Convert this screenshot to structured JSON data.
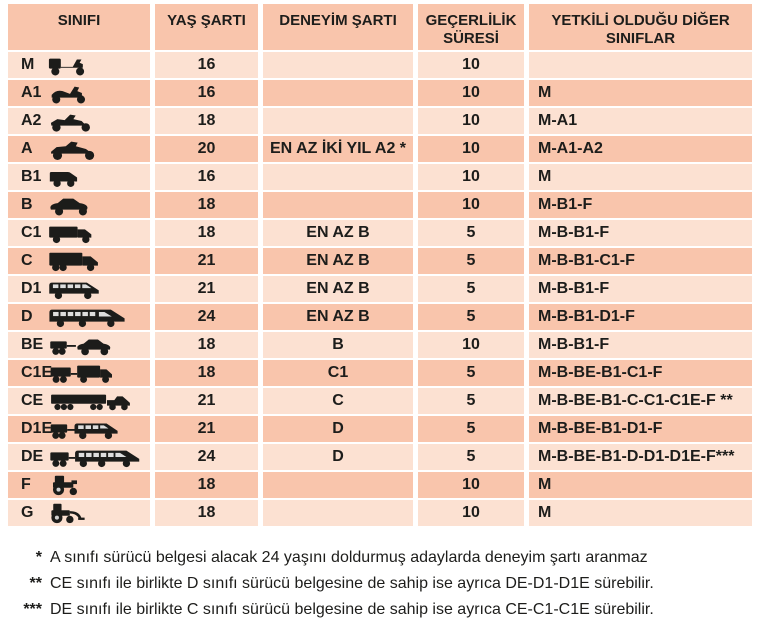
{
  "colors": {
    "row_light": "#fce1d2",
    "row_dark": "#f9c5ac",
    "text": "#1d1d1b",
    "background": "#ffffff"
  },
  "table": {
    "headers": [
      "SINIFI",
      "YAŞ ŞARTI",
      "DENEYİM ŞARTI",
      "GEÇERLİLİK SÜRESİ",
      "YETKİLİ OLDUĞU DİĞER SINIFLAR"
    ],
    "rows": [
      {
        "class": "M",
        "icon": "moped-icon",
        "age": "16",
        "experience": "",
        "validity": "10",
        "authorized": ""
      },
      {
        "class": "A1",
        "icon": "scooter-icon",
        "age": "16",
        "experience": "",
        "validity": "10",
        "authorized": "M"
      },
      {
        "class": "A2",
        "icon": "motorcycle-icon",
        "age": "18",
        "experience": "",
        "validity": "10",
        "authorized": "M-A1"
      },
      {
        "class": "A",
        "icon": "heavy-motorcycle-icon",
        "age": "20",
        "experience": "EN AZ İKİ YIL A2 *",
        "validity": "10",
        "authorized": "M-A1-A2"
      },
      {
        "class": "B1",
        "icon": "van-icon",
        "age": "16",
        "experience": "",
        "validity": "10",
        "authorized": "M"
      },
      {
        "class": "B",
        "icon": "car-icon",
        "age": "18",
        "experience": "",
        "validity": "10",
        "authorized": "M-B1-F"
      },
      {
        "class": "C1",
        "icon": "small-truck-icon",
        "age": "18",
        "experience": "EN AZ B",
        "validity": "5",
        "authorized": "M-B-B1-F"
      },
      {
        "class": "C",
        "icon": "truck-icon",
        "age": "21",
        "experience": "EN AZ B",
        "validity": "5",
        "authorized": "M-B-B1-C1-F"
      },
      {
        "class": "D1",
        "icon": "minibus-icon",
        "age": "21",
        "experience": "EN AZ B",
        "validity": "5",
        "authorized": "M-B-B1-F"
      },
      {
        "class": "D",
        "icon": "bus-icon",
        "age": "24",
        "experience": "EN AZ B",
        "validity": "5",
        "authorized": "M-B-B1-D1-F"
      },
      {
        "class": "BE",
        "icon": "car-trailer-icon",
        "age": "18",
        "experience": "B",
        "validity": "10",
        "authorized": "M-B-B1-F"
      },
      {
        "class": "C1E",
        "icon": "small-truck-trailer-icon",
        "age": "18",
        "experience": "C1",
        "validity": "5",
        "authorized": "M-B-BE-B1-C1-F"
      },
      {
        "class": "CE",
        "icon": "semi-truck-icon",
        "age": "21",
        "experience": "C",
        "validity": "5",
        "authorized": "M-B-BE-B1-C-C1-C1E-F **"
      },
      {
        "class": "D1E",
        "icon": "minibus-trailer-icon",
        "age": "21",
        "experience": "D",
        "validity": "5",
        "authorized": "M-B-BE-B1-D1-F"
      },
      {
        "class": "DE",
        "icon": "bus-trailer-icon",
        "age": "24",
        "experience": "D",
        "validity": "5",
        "authorized": "M-B-BE-B1-D-D1-D1E-F***"
      },
      {
        "class": "F",
        "icon": "tractor-icon",
        "age": "18",
        "experience": "",
        "validity": "10",
        "authorized": "M"
      },
      {
        "class": "G",
        "icon": "work-machine-icon",
        "age": "18",
        "experience": "",
        "validity": "10",
        "authorized": "M"
      }
    ]
  },
  "footnotes": [
    {
      "marker": "*",
      "text": "A sınıfı sürücü belgesi alacak 24 yaşını doldurmuş adaylarda deneyim şartı aranmaz"
    },
    {
      "marker": "**",
      "text": "CE sınıfı ile birlikte D sınıfı sürücü belgesine de sahip ise ayrıca DE-D1-D1E sürebilir."
    },
    {
      "marker": "***",
      "text": "DE sınıfı ile birlikte C sınıfı sürücü belgesine de sahip ise ayrıca CE-C1-C1E sürebilir."
    }
  ]
}
